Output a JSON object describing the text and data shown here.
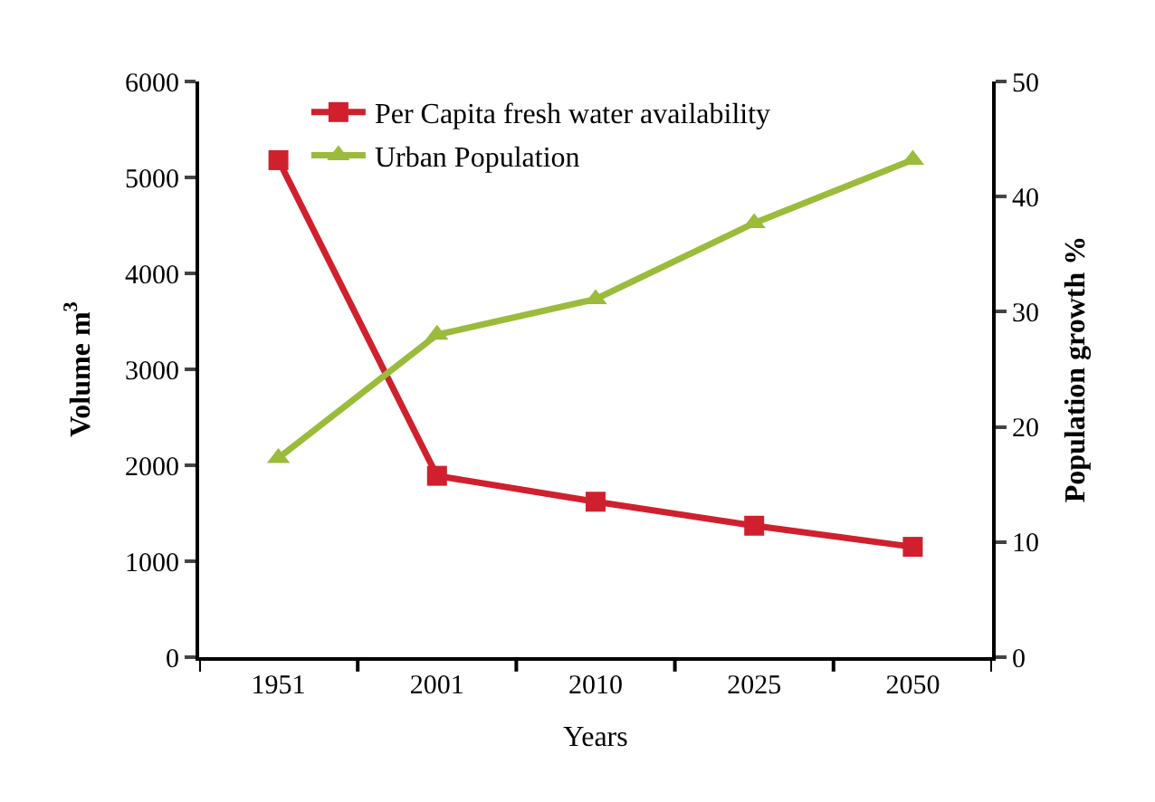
{
  "chart_data": {
    "type": "line",
    "xlabel": "Years",
    "ylabel": "Volume m$^{3}$",
    "y2label": "Population growth %",
    "categories": [
      "1951",
      "2001",
      "2010",
      "2025",
      "2050"
    ],
    "series": [
      {
        "name": "Per Capita fresh water availability",
        "color": "#d0202e",
        "marker": "square",
        "values": [
          5180,
          1890,
          1620,
          1370,
          1150
        ]
      },
      {
        "name": "Urban Population",
        "color": "#9bbb3b",
        "marker": "triangle",
        "axis": "y2",
        "values": [
          17.3,
          28,
          31.1,
          37.7,
          43.2
        ]
      }
    ],
    "ylim": [
      0,
      6000
    ],
    "yticks": [
      0,
      1000,
      2000,
      3000,
      4000,
      5000,
      6000
    ],
    "y2lim": [
      0,
      50
    ],
    "y2ticks": [
      0,
      10,
      20,
      30,
      40,
      50
    ],
    "legend": "top left"
  }
}
